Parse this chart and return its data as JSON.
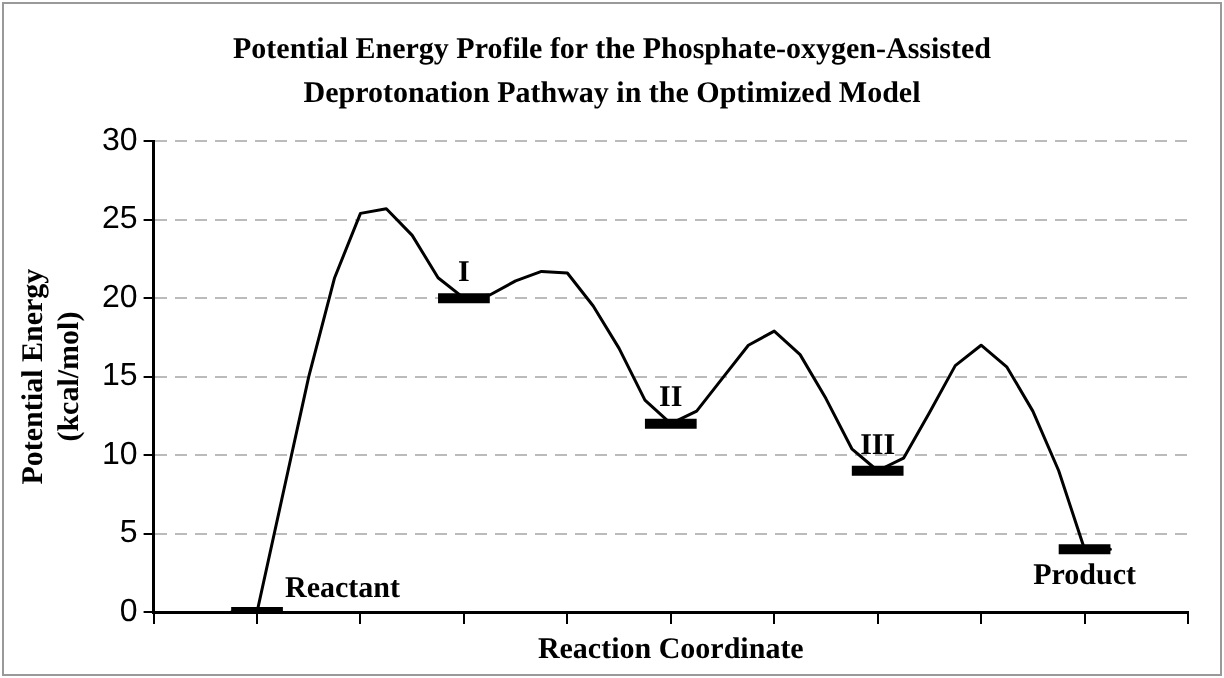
{
  "chart_data": {
    "type": "line",
    "title": "Potential Energy Profile for the Phosphate-oxygen-Assisted Deprotonation Pathway in the Optimized Model",
    "xlabel": "Reaction Coordinate",
    "ylabel": "Potential Energy (kcal/mol)",
    "categories": [
      null,
      null,
      null,
      null,
      null,
      null,
      null,
      null,
      null,
      null,
      null,
      null,
      null,
      null,
      null,
      null,
      null,
      null,
      null,
      null,
      null,
      null,
      null,
      null,
      null,
      null,
      null,
      null,
      null,
      null,
      null,
      null,
      null,
      null,
      null
    ],
    "ylim": [
      0,
      30
    ],
    "yticks": [
      0,
      5,
      10,
      15,
      20,
      25,
      30
    ],
    "tick_labels": "y",
    "grid": "y",
    "legend": false,
    "marker": "none",
    "series": [
      {
        "type": "line",
        "color": "#000000",
        "values": [
          0,
          0,
          7.5,
          15,
          21.3,
          25.4,
          25.7,
          24,
          21.3,
          20,
          20.2,
          21.1,
          21.7,
          21.6,
          19.5,
          16.8,
          13.5,
          12,
          12.8,
          14.9,
          17,
          17.9,
          16.4,
          13.6,
          10.4,
          9,
          9.8,
          12.7,
          15.7,
          17,
          15.6,
          12.8,
          9,
          4,
          4
        ]
      },
      {
        "type": "line",
        "color": "#000000",
        "values": [
          0,
          0,
          0,
          null,
          null,
          null,
          null,
          null,
          20,
          20,
          20,
          null,
          null,
          null,
          null,
          null,
          12,
          12,
          12,
          null,
          null,
          null,
          null,
          null,
          9,
          9,
          9,
          null,
          null,
          null,
          null,
          null,
          4,
          4,
          4
        ]
      }
    ],
    "annotations": [
      "Reactant",
      "I",
      "II",
      "III",
      "Product"
    ]
  }
}
